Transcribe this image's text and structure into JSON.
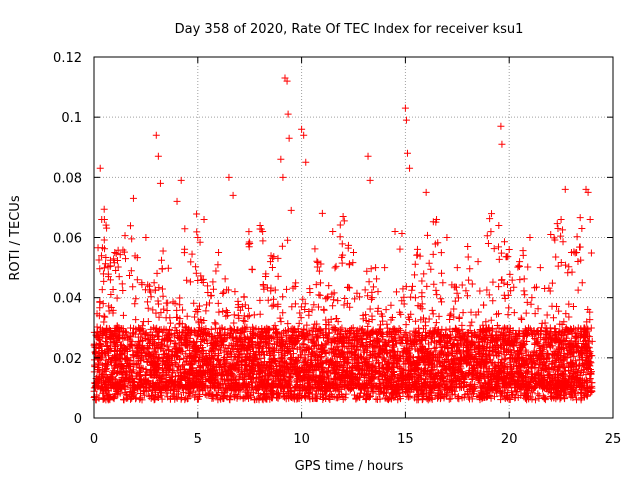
{
  "chart_data": {
    "type": "scatter",
    "title": "Day 358 of 2020, Rate Of TEC Index for receiver ksu1",
    "xlabel": "GPS time / hours",
    "ylabel": "ROTI / TECUs",
    "xlim": [
      0,
      25
    ],
    "ylim": [
      0,
      0.12
    ],
    "x_ticks": [
      "0",
      "5",
      "10",
      "15",
      "20",
      "25"
    ],
    "y_ticks": [
      "0",
      "0.02",
      "0.04",
      "0.06",
      "0.08",
      "0.1",
      "0.12"
    ],
    "grid": true,
    "marker": "+",
    "color": "#ff0000",
    "series": [
      {
        "name": "ROTI",
        "points": [
          [
            0.3,
            0.083
          ],
          [
            0.5,
            0.066
          ],
          [
            1.0,
            0.055
          ],
          [
            1.9,
            0.073
          ],
          [
            2.5,
            0.06
          ],
          [
            3.0,
            0.094
          ],
          [
            3.1,
            0.087
          ],
          [
            3.2,
            0.078
          ],
          [
            4.0,
            0.072
          ],
          [
            4.2,
            0.079
          ],
          [
            5.0,
            0.06
          ],
          [
            5.3,
            0.066
          ],
          [
            6.0,
            0.055
          ],
          [
            6.5,
            0.08
          ],
          [
            6.7,
            0.074
          ],
          [
            7.5,
            0.058
          ],
          [
            8.0,
            0.064
          ],
          [
            8.5,
            0.052
          ],
          [
            9.0,
            0.086
          ],
          [
            9.1,
            0.08
          ],
          [
            9.2,
            0.113
          ],
          [
            9.3,
            0.112
          ],
          [
            9.35,
            0.101
          ],
          [
            9.4,
            0.093
          ],
          [
            9.5,
            0.069
          ],
          [
            10.0,
            0.096
          ],
          [
            10.1,
            0.094
          ],
          [
            10.2,
            0.085
          ],
          [
            11.0,
            0.068
          ],
          [
            11.5,
            0.062
          ],
          [
            12.0,
            0.067
          ],
          [
            12.5,
            0.055
          ],
          [
            13.2,
            0.087
          ],
          [
            13.3,
            0.079
          ],
          [
            14.0,
            0.05
          ],
          [
            14.5,
            0.062
          ],
          [
            15.0,
            0.103
          ],
          [
            15.05,
            0.099
          ],
          [
            15.1,
            0.088
          ],
          [
            15.2,
            0.083
          ],
          [
            16.0,
            0.075
          ],
          [
            16.5,
            0.066
          ],
          [
            17.0,
            0.06
          ],
          [
            17.5,
            0.05
          ],
          [
            18.0,
            0.057
          ],
          [
            18.5,
            0.052
          ],
          [
            19.0,
            0.058
          ],
          [
            19.5,
            0.064
          ],
          [
            19.6,
            0.097
          ],
          [
            19.65,
            0.091
          ],
          [
            20.0,
            0.056
          ],
          [
            20.5,
            0.052
          ],
          [
            21.0,
            0.06
          ],
          [
            21.5,
            0.05
          ],
          [
            22.0,
            0.061
          ],
          [
            22.5,
            0.066
          ],
          [
            22.7,
            0.076
          ],
          [
            23.0,
            0.055
          ],
          [
            23.5,
            0.063
          ],
          [
            23.7,
            0.076
          ],
          [
            23.8,
            0.075
          ],
          [
            23.9,
            0.066
          ]
        ]
      }
    ]
  }
}
